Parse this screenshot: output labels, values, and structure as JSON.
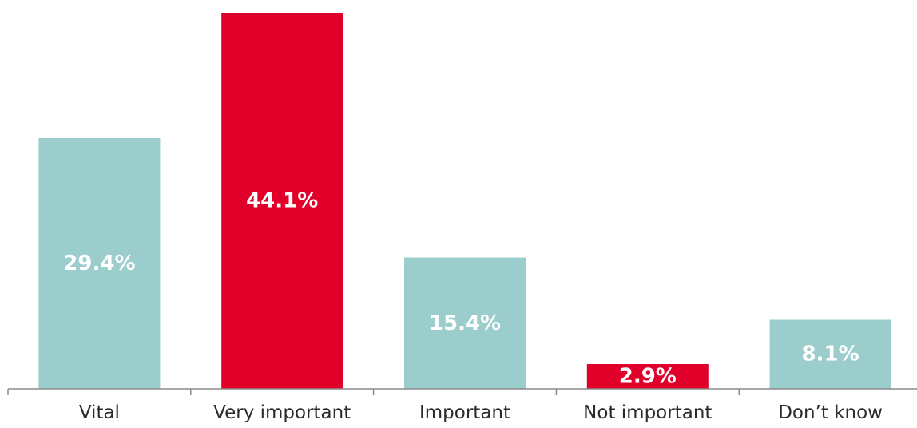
{
  "chart_data": {
    "type": "bar",
    "categories": [
      "Vital",
      "Very important",
      "Important",
      "Not important",
      "Don’t know"
    ],
    "values": [
      29.4,
      44.1,
      15.4,
      2.9,
      8.1
    ],
    "value_labels": [
      "29.4%",
      "44.1%",
      "15.4%",
      "2.9%",
      "8.1%"
    ],
    "bar_colors": [
      "#9bcdcc",
      "#e0002a",
      "#9bcdcc",
      "#e0002a",
      "#9bcdcc"
    ],
    "title": "",
    "xlabel": "",
    "ylabel": "",
    "ylim": [
      0,
      44.1
    ],
    "grid": false,
    "legend": "none"
  }
}
